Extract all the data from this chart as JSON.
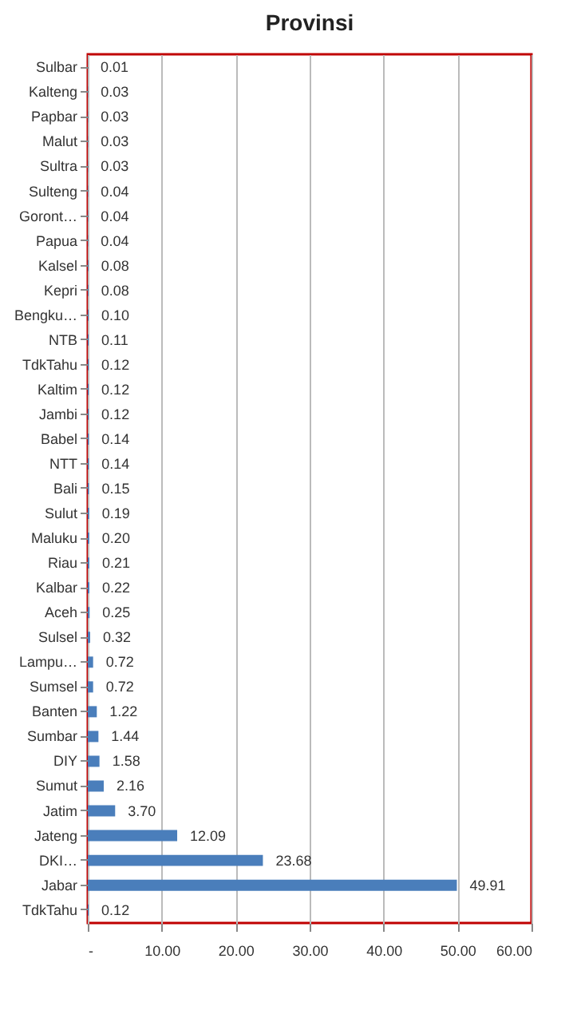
{
  "chart_data": {
    "type": "bar",
    "orientation": "horizontal",
    "title": "Provinsi",
    "categories": [
      "Sulbar",
      "Kalteng",
      "Papbar",
      "Malut",
      "Sultra",
      "Sulteng",
      "Goront…",
      "Papua",
      "Kalsel",
      "Kepri",
      "Bengku…",
      "NTB",
      "TdkTahu",
      "Kaltim",
      "Jambi",
      "Babel",
      "NTT",
      "Bali",
      "Sulut",
      "Maluku",
      "Riau",
      "Kalbar",
      "Aceh",
      "Sulsel",
      "Lampu…",
      "Sumsel",
      "Banten",
      "Sumbar",
      "DIY",
      "Sumut",
      "Jatim",
      "Jateng",
      "DKI…",
      "Jabar",
      "TdkTahu"
    ],
    "values": [
      0.01,
      0.03,
      0.03,
      0.03,
      0.03,
      0.04,
      0.04,
      0.04,
      0.08,
      0.08,
      0.1,
      0.11,
      0.12,
      0.12,
      0.12,
      0.14,
      0.14,
      0.15,
      0.19,
      0.2,
      0.21,
      0.22,
      0.25,
      0.32,
      0.72,
      0.72,
      1.22,
      1.44,
      1.58,
      2.16,
      3.7,
      12.09,
      23.68,
      49.91,
      0.12
    ],
    "value_labels": [
      "0.01",
      "0.03",
      "0.03",
      "0.03",
      "0.03",
      "0.04",
      "0.04",
      "0.04",
      "0.08",
      "0.08",
      "0.10",
      "0.11",
      "0.12",
      "0.12",
      "0.12",
      "0.14",
      "0.14",
      "0.15",
      "0.19",
      "0.20",
      "0.21",
      "0.22",
      "0.25",
      "0.32",
      "0.72",
      "0.72",
      "1.22",
      "1.44",
      "1.58",
      "2.16",
      "3.70",
      "12.09",
      "23.68",
      "49.91",
      "0.12"
    ],
    "color": "#4a7ebb",
    "xlim": [
      0,
      60
    ],
    "xticks": [
      {
        "value": 0,
        "label": "-"
      },
      {
        "value": 10,
        "label": "10.00"
      },
      {
        "value": 20,
        "label": "20.00"
      },
      {
        "value": 30,
        "label": "30.00"
      },
      {
        "value": 40,
        "label": "40.00"
      },
      {
        "value": 50,
        "label": "50.00"
      },
      {
        "value": 60,
        "label": "60.00"
      }
    ],
    "grid": "x"
  }
}
